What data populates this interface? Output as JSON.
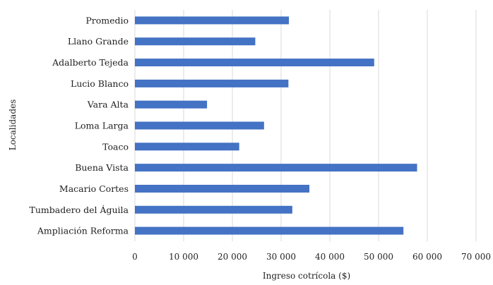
{
  "chart_data": {
    "type": "bar",
    "orientation": "horizontal",
    "categories": [
      "Promedio",
      "Llano Grande",
      "Adalberto Tejeda",
      "Lucio Blanco",
      "Vara Alta",
      "Loma Larga",
      "Toaco",
      "Buena Vista",
      "Macario Cortes",
      "Tumbadero del Águila",
      "Ampliación Reforma"
    ],
    "values": [
      31600,
      24700,
      49100,
      31500,
      14800,
      26500,
      21400,
      57900,
      35800,
      32300,
      55100
    ],
    "xlabel": "Ingreso cotrícola ($)",
    "ylabel": "Localidades",
    "xlim": [
      0,
      70000
    ],
    "xticks": [
      0,
      10000,
      20000,
      30000,
      40000,
      50000,
      60000,
      70000
    ],
    "xtick_labels": [
      "0",
      "10 000",
      "20 000",
      "30 000",
      "40 000",
      "50 000",
      "60 000",
      "70 000"
    ],
    "grid": "vertical",
    "legend": "none",
    "bar_color": "#4472c4",
    "grid_color": "#d9d9d9"
  }
}
